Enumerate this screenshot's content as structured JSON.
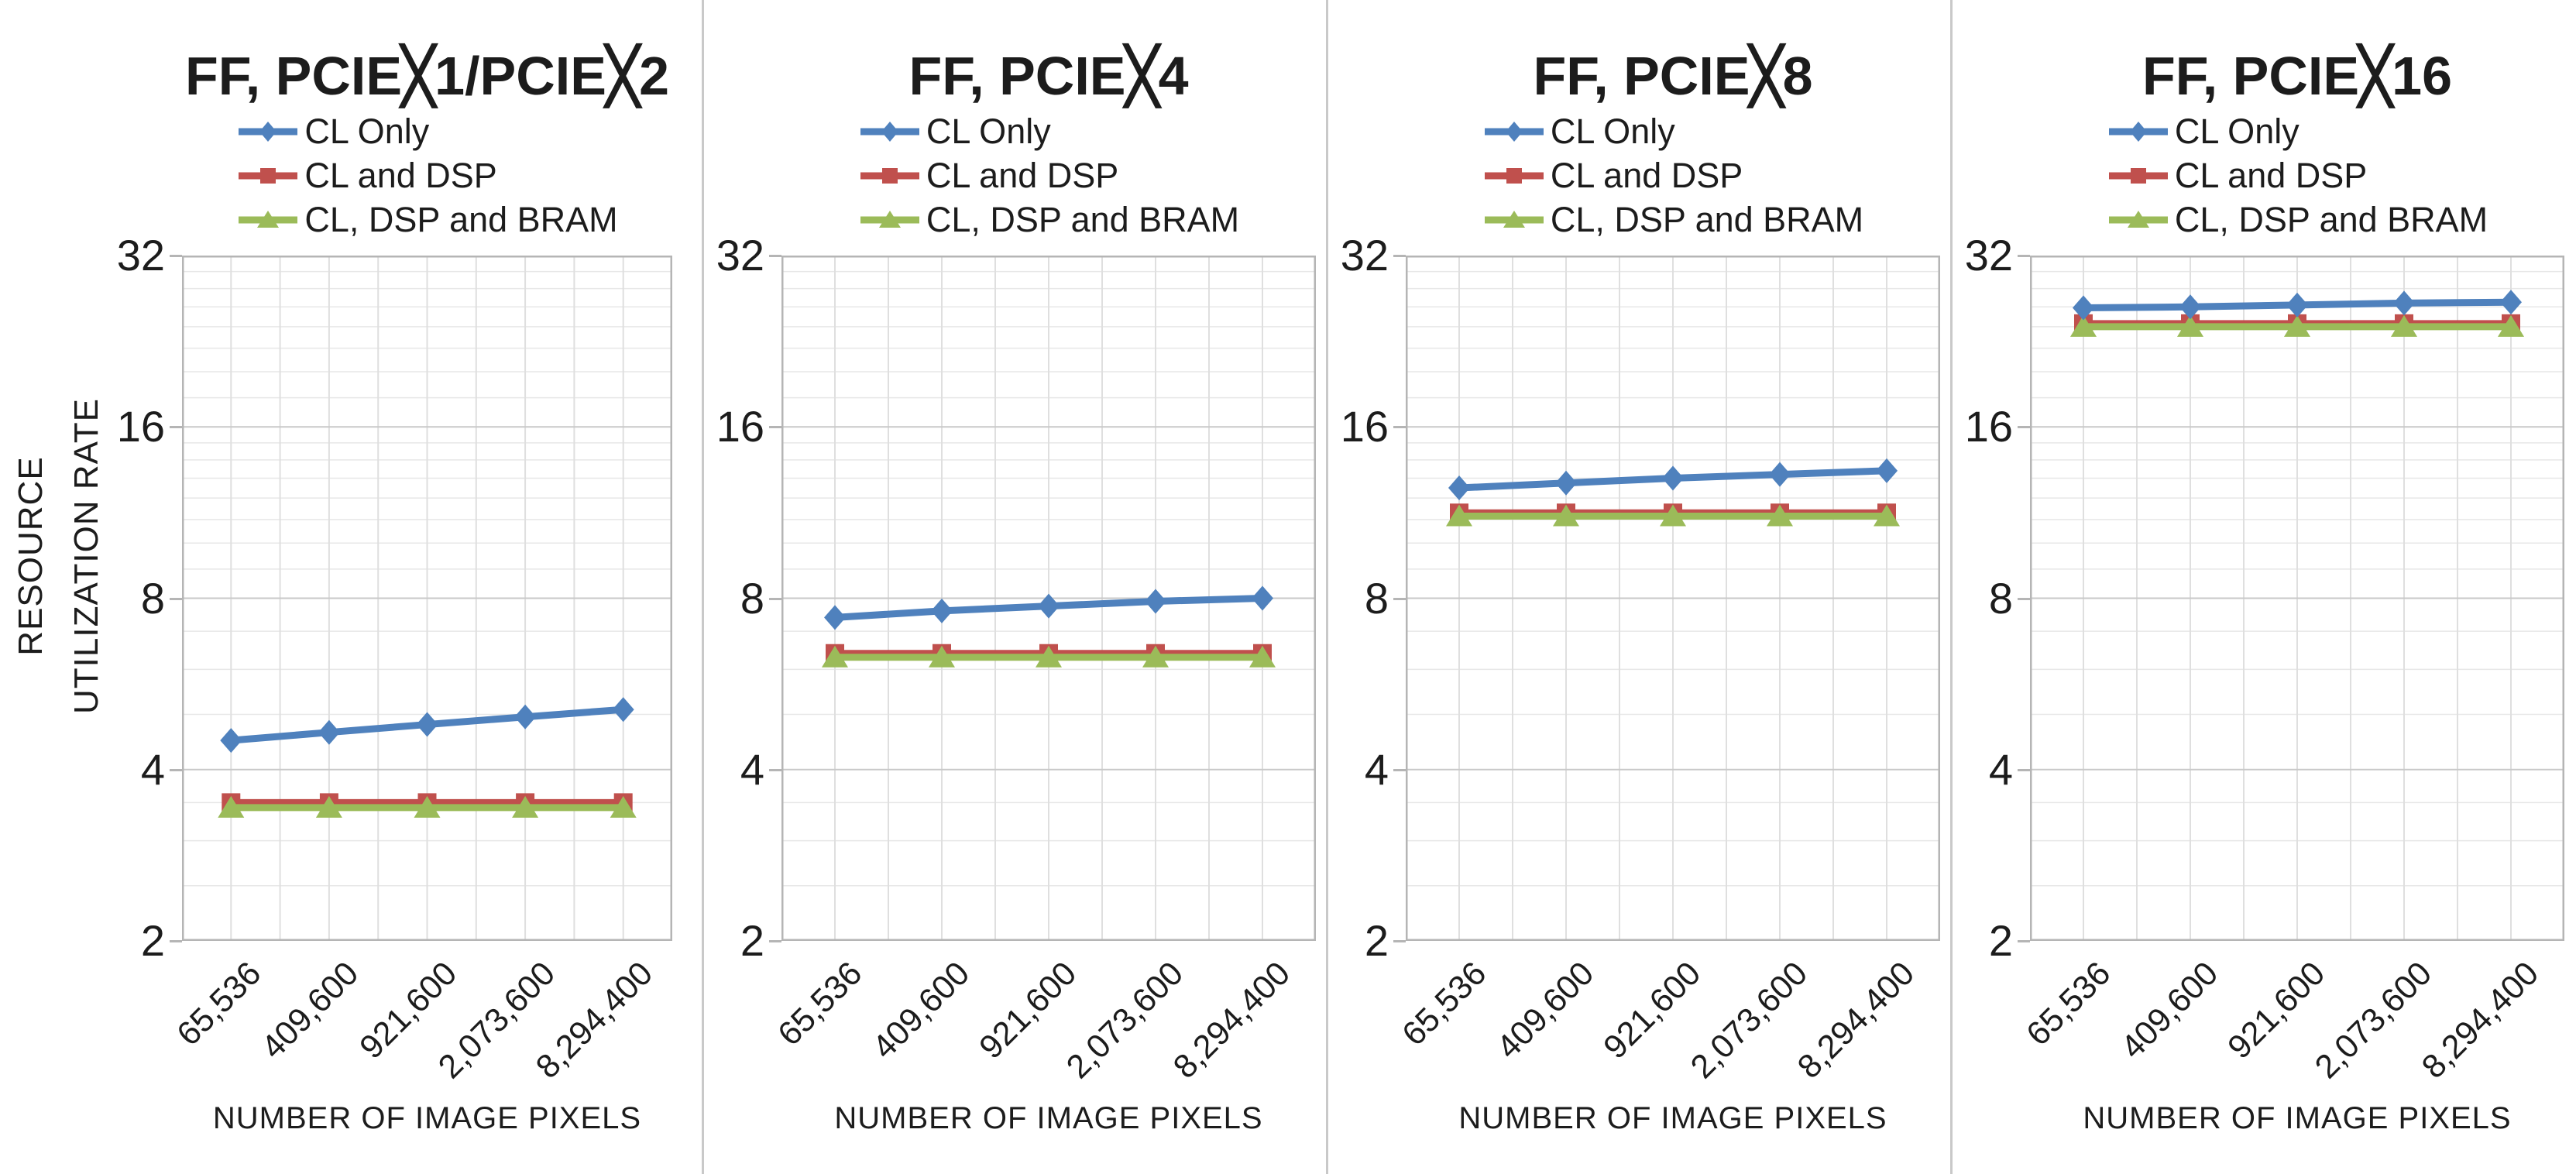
{
  "figure": {
    "y_axis_title_line1": "RESOURCE",
    "y_axis_title_line2": "UTILIZATION RATE",
    "x_axis_title": "NUMBER OF IMAGE PIXELS",
    "y_ticks": [
      "32",
      "16",
      "8",
      "4",
      "2"
    ],
    "legend": [
      "CL Only",
      "CL and DSP",
      "CL, DSP and BRAM"
    ],
    "colors": {
      "cl_only": "#4F81BD",
      "cl_and_dsp": "#C0504D",
      "cl_dsp_and_bram": "#9BBB59",
      "grid_minor": "#e7e7e7",
      "grid_major": "#c9c9c9",
      "grid_vertical": "#dfdfdf",
      "axis_border": "#b5b5b5",
      "panel_divider": "#c9c9c9",
      "text": "#1c1c1c"
    }
  },
  "chart_data": [
    {
      "type": "line",
      "title": "FF, PCIE╳1/PCIE╳2",
      "xlabel": "NUMBER OF IMAGE PIXELS",
      "ylabel": "RESOURCE UTILIZATION RATE",
      "yscale": "log2",
      "ylim": [
        2,
        32
      ],
      "y_ticks": [
        32,
        16,
        8,
        4,
        2
      ],
      "grid": true,
      "legend_position": "top",
      "x_categories": [
        "65,536",
        "409,600",
        "921,600",
        "2,073,600",
        "8,294,400"
      ],
      "series": [
        {
          "name": "CL Only",
          "marker": "diamond",
          "color": "#4F81BD",
          "values": [
            4.5,
            4.65,
            4.8,
            4.95,
            5.1
          ]
        },
        {
          "name": "CL and DSP",
          "marker": "square",
          "color": "#C0504D",
          "values": [
            3.5,
            3.5,
            3.5,
            3.5,
            3.5
          ]
        },
        {
          "name": "CL, DSP and BRAM",
          "marker": "triangle",
          "color": "#9BBB59",
          "values": [
            3.43,
            3.43,
            3.43,
            3.43,
            3.43
          ]
        }
      ]
    },
    {
      "type": "line",
      "title": "FF, PCIE╳4",
      "xlabel": "NUMBER OF IMAGE PIXELS",
      "ylabel": "",
      "yscale": "log2",
      "ylim": [
        2,
        32
      ],
      "y_ticks": [
        32,
        16,
        8,
        4,
        2
      ],
      "grid": true,
      "legend_position": "top",
      "x_categories": [
        "65,536",
        "409,600",
        "921,600",
        "2,073,600",
        "8,294,400"
      ],
      "series": [
        {
          "name": "CL Only",
          "marker": "diamond",
          "color": "#4F81BD",
          "values": [
            7.4,
            7.6,
            7.75,
            7.9,
            8.0
          ]
        },
        {
          "name": "CL and DSP",
          "marker": "square",
          "color": "#C0504D",
          "values": [
            6.4,
            6.4,
            6.4,
            6.4,
            6.4
          ]
        },
        {
          "name": "CL, DSP and BRAM",
          "marker": "triangle",
          "color": "#9BBB59",
          "values": [
            6.3,
            6.3,
            6.3,
            6.3,
            6.3
          ]
        }
      ]
    },
    {
      "type": "line",
      "title": "FF, PCIE╳8",
      "xlabel": "NUMBER OF IMAGE PIXELS",
      "ylabel": "",
      "yscale": "log2",
      "ylim": [
        2,
        32
      ],
      "y_ticks": [
        32,
        16,
        8,
        4,
        2
      ],
      "grid": true,
      "legend_position": "top",
      "x_categories": [
        "65,536",
        "409,600",
        "921,600",
        "2,073,600",
        "8,294,400"
      ],
      "series": [
        {
          "name": "CL Only",
          "marker": "diamond",
          "color": "#4F81BD",
          "values": [
            12.5,
            12.75,
            13.0,
            13.2,
            13.4
          ]
        },
        {
          "name": "CL and DSP",
          "marker": "square",
          "color": "#C0504D",
          "values": [
            11.3,
            11.3,
            11.3,
            11.3,
            11.3
          ]
        },
        {
          "name": "CL, DSP and BRAM",
          "marker": "triangle",
          "color": "#9BBB59",
          "values": [
            11.15,
            11.15,
            11.15,
            11.15,
            11.15
          ]
        }
      ]
    },
    {
      "type": "line",
      "title": "FF, PCIE╳16",
      "xlabel": "NUMBER OF IMAGE PIXELS",
      "ylabel": "",
      "yscale": "log2",
      "ylim": [
        2,
        32
      ],
      "y_ticks": [
        32,
        16,
        8,
        4,
        2
      ],
      "grid": true,
      "legend_position": "top",
      "x_categories": [
        "65,536",
        "409,600",
        "921,600",
        "2,073,600",
        "8,294,400"
      ],
      "series": [
        {
          "name": "CL Only",
          "marker": "diamond",
          "color": "#4F81BD",
          "values": [
            25.9,
            26.0,
            26.2,
            26.4,
            26.5
          ]
        },
        {
          "name": "CL and DSP",
          "marker": "square",
          "color": "#C0504D",
          "values": [
            24.3,
            24.3,
            24.3,
            24.3,
            24.3
          ]
        },
        {
          "name": "CL, DSP and BRAM",
          "marker": "triangle",
          "color": "#9BBB59",
          "values": [
            24.0,
            24.0,
            24.0,
            24.0,
            24.0
          ]
        }
      ]
    }
  ]
}
